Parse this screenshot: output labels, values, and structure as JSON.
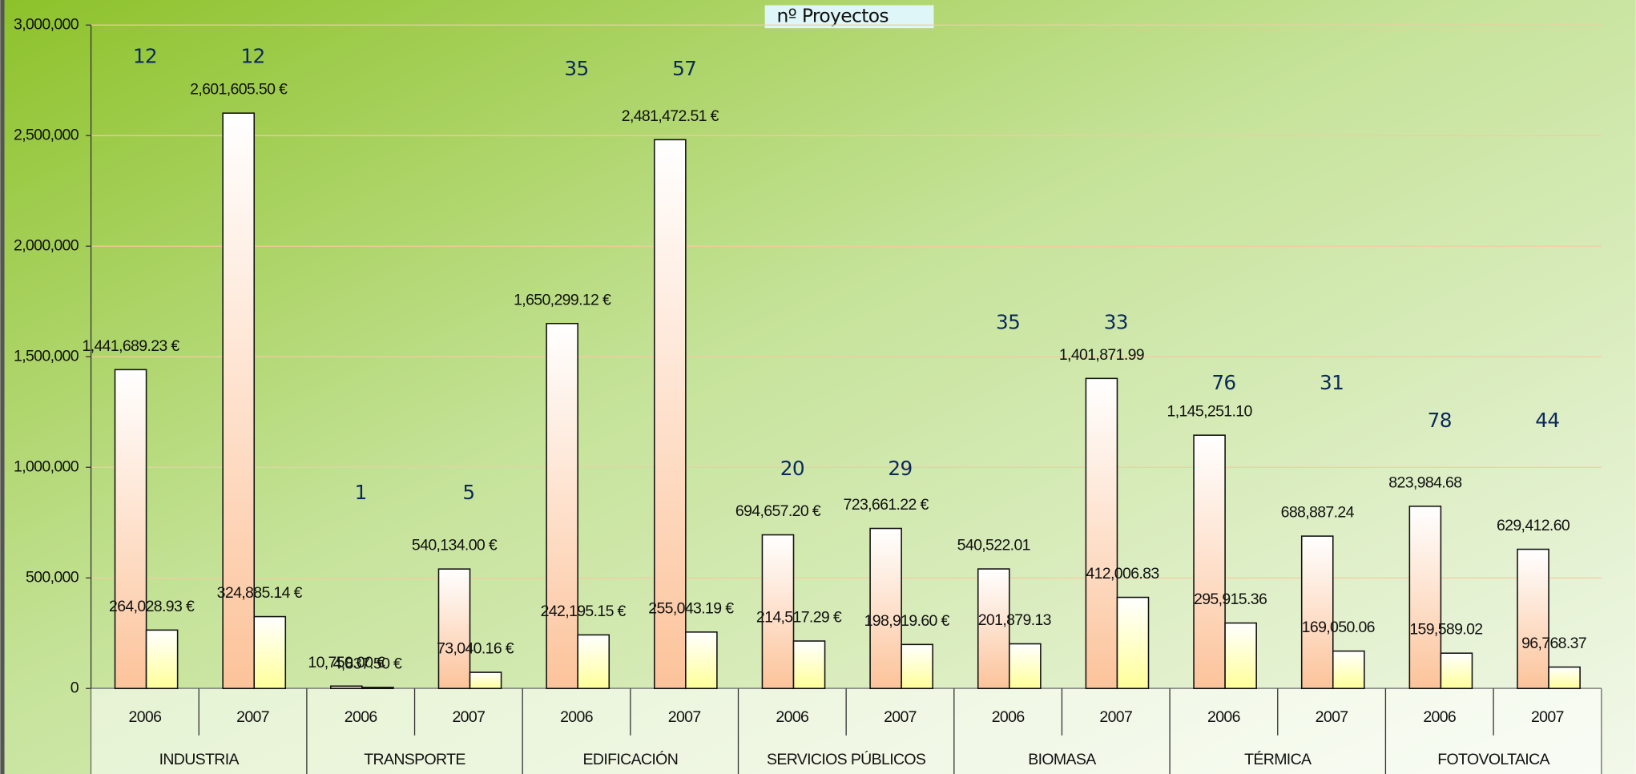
{
  "chart_data": {
    "type": "bar",
    "title": "nº Proyectos",
    "groups": [
      "INDUSTRIA",
      "TRANSPORTE",
      "EDIFICACIÓN",
      "SERVICIOS PÚBLICOS",
      "BIOMASA",
      "TÉRMICA",
      "FOTOVOLTAICA"
    ],
    "categories": [
      "2006",
      "2007",
      "2006",
      "2007",
      "2006",
      "2007",
      "2006",
      "2007",
      "2006",
      "2007",
      "2006",
      "2007",
      "2006",
      "2007"
    ],
    "series": [
      {
        "color": "#fcc39a",
        "values": [
          1441689.23,
          2601605.5,
          10750.0,
          540134.0,
          1650299.12,
          2481472.51,
          694657.2,
          723661.22,
          540522.01,
          1401871.99,
          1145251.1,
          688887.24,
          823984.68,
          629412.6
        ],
        "value_labels": [
          "1,441,689.23 €",
          "2,601,605.50 €",
          "10,750.00 €",
          "540,134.00 €",
          "1,650,299.12 €",
          "2,481,472.51 €",
          "694,657.20 €",
          "723,661.22 €",
          "540,522.01",
          "1,401,871.99",
          "1,145,251.10",
          "688,887.24",
          "823,984.68",
          "629,412.60"
        ]
      },
      {
        "color": "#ffff99",
        "values": [
          264028.93,
          324885.14,
          4837.5,
          73040.16,
          242195.15,
          255043.19,
          214517.29,
          198919.6,
          201879.13,
          412006.83,
          295915.36,
          169050.06,
          159589.02,
          96768.37
        ],
        "value_labels": [
          "264,028.93 €",
          "324,885.14 €",
          "4,837.50 €",
          "73,040.16 €",
          "242,195.15 €",
          "255,043.19 €",
          "214,517.29 €",
          "198,919.60 €",
          "201,879.13",
          "412,006.83",
          "295,915.36",
          "169,050.06",
          "159,589.02",
          "96,768.37"
        ]
      }
    ],
    "projects": [
      12,
      12,
      1,
      5,
      35,
      57,
      20,
      29,
      35,
      33,
      76,
      31,
      78,
      44
    ],
    "ylim": [
      0,
      3000000
    ],
    "yticks": [
      0,
      {
        "value": 500000,
        "label": "500,000"
      },
      {
        "value": 1000000,
        "label": "1,000,000"
      },
      {
        "value": 1500000,
        "label": "1,500,000"
      },
      {
        "value": 2000000,
        "label": "2,000,000"
      },
      {
        "value": 2500000,
        "label": "2,500,000"
      },
      {
        "value": 3000000,
        "label": "3,000,000"
      }
    ],
    "grid": true
  }
}
